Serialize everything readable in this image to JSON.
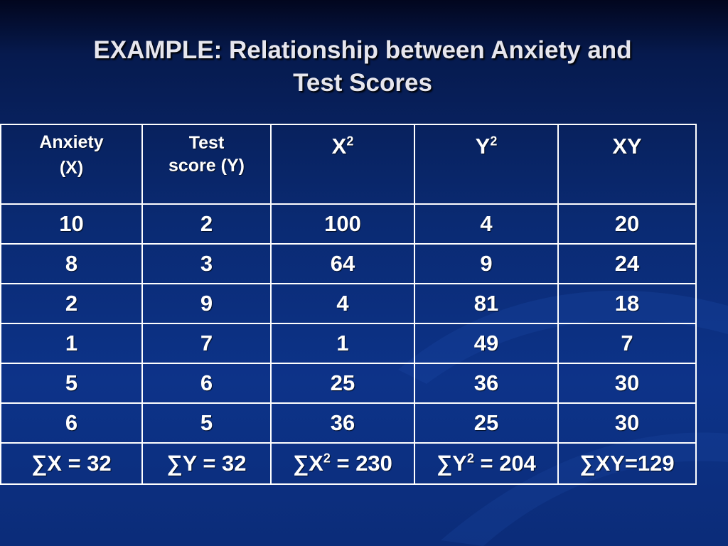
{
  "slide": {
    "title_line1": "EXAMPLE: Relationship between Anxiety and",
    "title_line2": "Test Scores"
  },
  "table": {
    "headers": {
      "c1_line1": "Anxiety",
      "c1_line2": "(X)",
      "c2_line1": "Test",
      "c2_line2": "score (Y)",
      "c3_base": "X",
      "c3_sup": "2",
      "c4_base": "Y",
      "c4_sup": "2",
      "c5": "XY"
    },
    "rows": [
      [
        "10",
        "2",
        "100",
        "4",
        "20"
      ],
      [
        "8",
        "3",
        "64",
        "9",
        "24"
      ],
      [
        "2",
        "9",
        "4",
        "81",
        "18"
      ],
      [
        "1",
        "7",
        "1",
        "49",
        "7"
      ],
      [
        "5",
        "6",
        "25",
        "36",
        "30"
      ],
      [
        "6",
        "5",
        "36",
        "25",
        "30"
      ]
    ],
    "totals": {
      "c1": "∑X = 32",
      "c2": "∑Y = 32",
      "c3_pre": "∑X",
      "c3_sup": "2",
      "c3_post": " = 230",
      "c4_pre": "∑Y",
      "c4_sup": "2",
      "c4_post": " = 204",
      "c5": "∑XY=129"
    }
  },
  "colors": {
    "background": "#0a2a72",
    "text": "#ffffff",
    "title": "#e6e6ee"
  }
}
